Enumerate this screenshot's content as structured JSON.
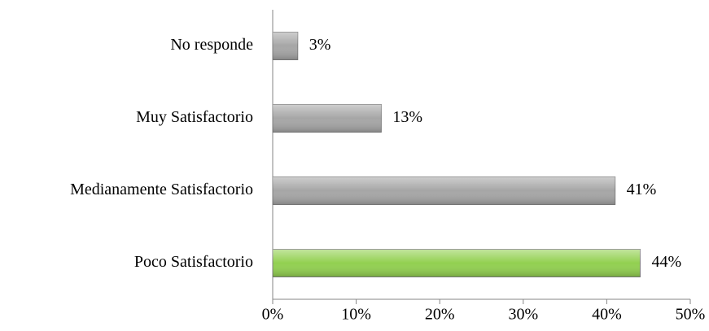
{
  "chart_data": {
    "type": "hbar",
    "categories": [
      "No responde",
      "Muy Satisfactorio",
      "Medianamente Satisfactorio",
      "Poco Satisfactorio"
    ],
    "values": [
      3,
      13,
      41,
      44
    ],
    "value_labels": [
      "3%",
      "13%",
      "41%",
      "44%"
    ],
    "colors": [
      "#a6a6a6",
      "#a6a6a6",
      "#a6a6a6",
      "#92d050"
    ],
    "xlim": [
      0,
      50
    ],
    "xticks": [
      {
        "value": 0,
        "label": "0%"
      },
      {
        "value": 10,
        "label": "10%"
      },
      {
        "value": 20,
        "label": "20%"
      },
      {
        "value": 30,
        "label": "30%"
      },
      {
        "value": 40,
        "label": "40%"
      },
      {
        "value": 50,
        "label": "50%"
      }
    ],
    "grid": false
  }
}
